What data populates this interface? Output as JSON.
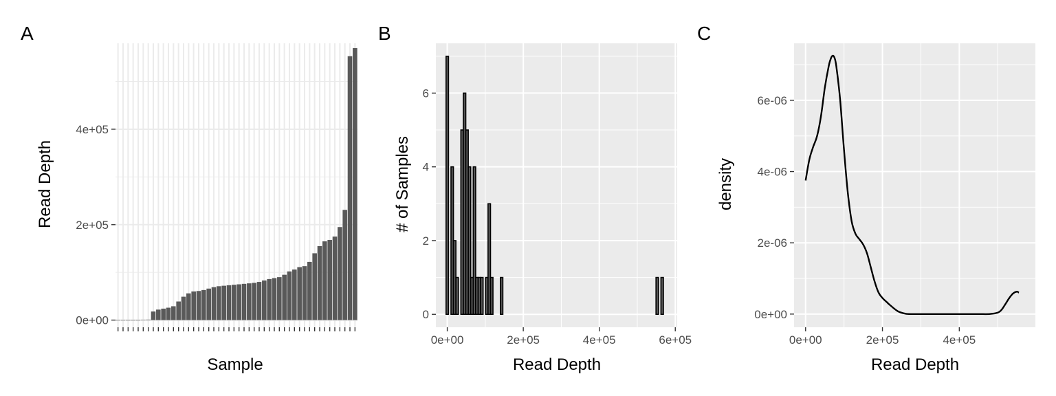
{
  "panels": [
    {
      "tag": "A"
    },
    {
      "tag": "B"
    },
    {
      "tag": "C"
    }
  ],
  "chart_data": [
    {
      "type": "bar",
      "tag": "A",
      "xlabel": "Sample",
      "ylabel": "Read Depth",
      "ylim": [
        -15000,
        580000
      ],
      "y_ticks": [
        0,
        200000,
        400000
      ],
      "y_tick_labels": [
        "0e+00",
        "2e+05",
        "4e+05"
      ],
      "grid": true,
      "categories_shown": false,
      "values": [
        0,
        0,
        0,
        0,
        0,
        500,
        1000,
        18000,
        22000,
        24000,
        26000,
        29000,
        39000,
        49000,
        56000,
        60000,
        61000,
        63000,
        66000,
        69000,
        71000,
        72000,
        73000,
        74000,
        75000,
        76000,
        77000,
        78000,
        80000,
        83000,
        86000,
        88000,
        90000,
        95000,
        102000,
        106000,
        111000,
        113000,
        122000,
        140000,
        155000,
        165000,
        168000,
        175000,
        195000,
        231000,
        553000,
        570000
      ],
      "bar_color": "#595959"
    },
    {
      "type": "bar",
      "subtype": "histogram",
      "tag": "B",
      "xlabel": "Read Depth",
      "ylabel": "# of Samples",
      "xlim": [
        -30000,
        605000
      ],
      "ylim": [
        -0.35,
        7.35
      ],
      "x_ticks": [
        0,
        200000,
        400000,
        600000
      ],
      "x_tick_labels": [
        "0e+00",
        "2e+05",
        "4e+05",
        "6e+05"
      ],
      "y_ticks": [
        0,
        2,
        4,
        6
      ],
      "y_tick_labels": [
        "0",
        "2",
        "4",
        "6"
      ],
      "grid": true,
      "bin_width": 6500,
      "bin_start": -3250,
      "counts": [
        7,
        0,
        4,
        2,
        1,
        0,
        5,
        6,
        5,
        4,
        1,
        4,
        1,
        1,
        1,
        0,
        1,
        3,
        1,
        0,
        0,
        0,
        1,
        0,
        0,
        0,
        0,
        0,
        0,
        0,
        0,
        0,
        0,
        0,
        0,
        0,
        0,
        0,
        0,
        0,
        0,
        0,
        0,
        0,
        0,
        0,
        0,
        0,
        0,
        0,
        0,
        0,
        0,
        0,
        0,
        0,
        0,
        0,
        0,
        0,
        0,
        0,
        0,
        0,
        0,
        0,
        0,
        0,
        0,
        0,
        0,
        0,
        0,
        0,
        0,
        0,
        0,
        0,
        0,
        0,
        0,
        0,
        0,
        0,
        0,
        1,
        0,
        1
      ],
      "bar_color": "#595959",
      "bar_outline": "#000000"
    },
    {
      "type": "line",
      "subtype": "density",
      "tag": "C",
      "xlabel": "Read Depth",
      "ylabel": "density",
      "xlim": [
        -30000,
        598000
      ],
      "ylim": [
        -3.7e-07,
        7.6e-06
      ],
      "x_ticks": [
        0,
        200000,
        400000
      ],
      "x_tick_labels": [
        "0e+00",
        "2e+05",
        "4e+05"
      ],
      "y_ticks": [
        0,
        2e-06,
        4e-06,
        6e-06
      ],
      "y_tick_labels": [
        "0e+00",
        "2e-06",
        "4e-06",
        "6e-06"
      ],
      "grid": true,
      "x": [
        0,
        10000,
        20000,
        30000,
        40000,
        50000,
        60000,
        65000,
        70000,
        75000,
        80000,
        90000,
        100000,
        110000,
        120000,
        130000,
        140000,
        150000,
        160000,
        170000,
        180000,
        190000,
        200000,
        210000,
        220000,
        240000,
        260000,
        280000,
        300000,
        350000,
        400000,
        450000,
        480000,
        500000,
        510000,
        520000,
        530000,
        540000,
        550000,
        555000
      ],
      "y": [
        3.75e-06,
        4.35e-06,
        4.7e-06,
        5e-06,
        5.55e-06,
        6.35e-06,
        6.95e-06,
        7.15e-06,
        7.25e-06,
        7.2e-06,
        6.95e-06,
        6e-06,
        4.6e-06,
        3.4e-06,
        2.6e-06,
        2.25e-06,
        2.1e-06,
        1.95e-06,
        1.7e-06,
        1.3e-06,
        9e-07,
        6e-07,
        4.5e-07,
        3.5e-07,
        2.5e-07,
        8e-08,
        1e-08,
        0.0,
        0.0,
        0.0,
        0.0,
        0.0,
        2e-09,
        4e-08,
        1.2e-07,
        2.8e-07,
        4.5e-07,
        5.8e-07,
        6.3e-07,
        6e-07
      ],
      "line_color": "#000000"
    }
  ],
  "colors": {
    "panel_bg": "#ebebeb",
    "panel_bg_A": "#ffffff",
    "grid": "#ffffff",
    "grid_A": "#ebebeb",
    "tick": "#333333",
    "tick_label": "#4d4d4d"
  }
}
